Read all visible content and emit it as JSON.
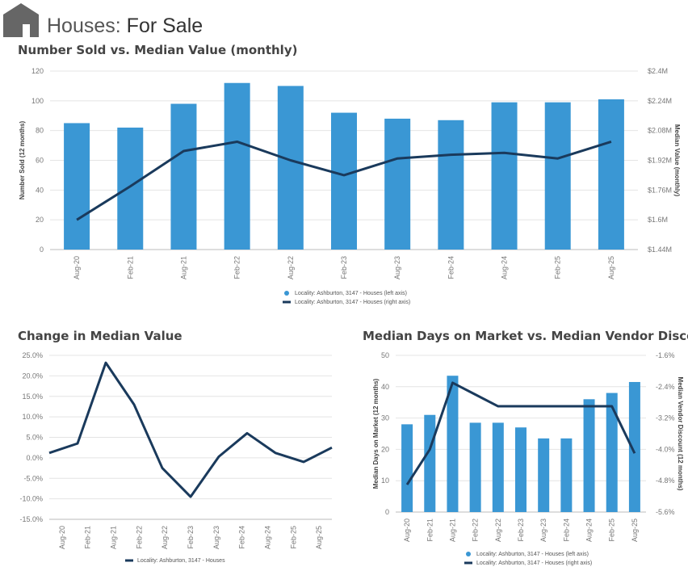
{
  "header": {
    "title_prefix": "Houses:",
    "title_main": "For Sale",
    "icon": "house-icon"
  },
  "chart_data": [
    {
      "type": "bar+line",
      "title": "Number Sold vs. Median Value (monthly)",
      "categories": [
        "Aug-20",
        "Feb-21",
        "Aug-21",
        "Feb-22",
        "Aug-22",
        "Feb-23",
        "Aug-23",
        "Feb-24",
        "Aug-24",
        "Feb-25",
        "Aug-25"
      ],
      "series": [
        {
          "name": "Locality: Ashburton, 3147 - Houses (left axis)",
          "type": "bar",
          "axis": "left",
          "color": "#3a97d4",
          "values": [
            85,
            82,
            98,
            112,
            110,
            92,
            88,
            87,
            99,
            99,
            101
          ]
        },
        {
          "name": "Locality: Ashburton, 3147 - Houses (right axis)",
          "type": "line",
          "axis": "right",
          "color": "#1a3a5c",
          "values": [
            1.6,
            1.78,
            1.97,
            2.02,
            1.92,
            1.84,
            1.93,
            1.95,
            1.96,
            1.93,
            2.02
          ]
        }
      ],
      "ylabel": "Number Sold (12 months)",
      "y2label": "Median Value (monthly)",
      "ylim": [
        0,
        120
      ],
      "yticks": [
        "0",
        "20",
        "40",
        "60",
        "80",
        "100",
        "120"
      ],
      "y2lim": [
        1.44,
        2.4
      ],
      "y2ticks": [
        "$1.44M",
        "$1.6M",
        "$1.76M",
        "$1.92M",
        "$2.08M",
        "$2.24M",
        "$2.4M"
      ]
    },
    {
      "type": "line",
      "title": "Change in Median Value",
      "categories": [
        "Aug-20",
        "Feb-21",
        "Aug-21",
        "Feb-22",
        "Aug-22",
        "Feb-23",
        "Aug-23",
        "Feb-24",
        "Aug-24",
        "Feb-25",
        "Aug-25"
      ],
      "series": [
        {
          "name": "Locality: Ashburton, 3147 - Houses",
          "color": "#1a3a5c",
          "values": [
            1.2,
            3.5,
            23.2,
            13.0,
            -2.5,
            -9.5,
            0.3,
            6.0,
            1.2,
            -1.0,
            2.5
          ]
        }
      ],
      "ylim": [
        -15,
        25
      ],
      "yticks": [
        "-15.0%",
        "-10.0%",
        "-5.0%",
        "0.0%",
        "5.0%",
        "10.0%",
        "15.0%",
        "20.0%",
        "25.0%"
      ]
    },
    {
      "type": "bar+line",
      "title": "Median Days on Market vs. Median Vendor Discount",
      "categories": [
        "Aug-20",
        "Feb-21",
        "Aug-21",
        "Feb-22",
        "Aug-22",
        "Feb-23",
        "Aug-23",
        "Feb-24",
        "Aug-24",
        "Feb-25",
        "Aug-25"
      ],
      "series": [
        {
          "name": "Locality: Ashburton, 3147 - Houses (left axis)",
          "type": "bar",
          "axis": "left",
          "color": "#3a97d4",
          "values": [
            28,
            31,
            43.5,
            28.5,
            28.5,
            27,
            23.5,
            23.5,
            36,
            38,
            41.5
          ]
        },
        {
          "name": "Locality: Ashburton, 3147 - Houses (right axis)",
          "type": "line",
          "axis": "right",
          "color": "#1a3a5c",
          "values": [
            -4.9,
            -4.0,
            -2.3,
            -2.6,
            -2.9,
            -2.9,
            -2.9,
            -2.9,
            -2.9,
            -2.9,
            -4.1
          ]
        }
      ],
      "ylabel": "Median Days on Market (12 months)",
      "y2label": "Median Vendor Discount (12 months)",
      "ylim": [
        0,
        50
      ],
      "yticks": [
        "0",
        "10",
        "20",
        "30",
        "40",
        "50"
      ],
      "y2lim": [
        -5.6,
        -1.6
      ],
      "y2ticks": [
        "-5.6%",
        "-4.8%",
        "-4.0%",
        "-3.2%",
        "-2.4%",
        "-1.6%"
      ]
    }
  ]
}
